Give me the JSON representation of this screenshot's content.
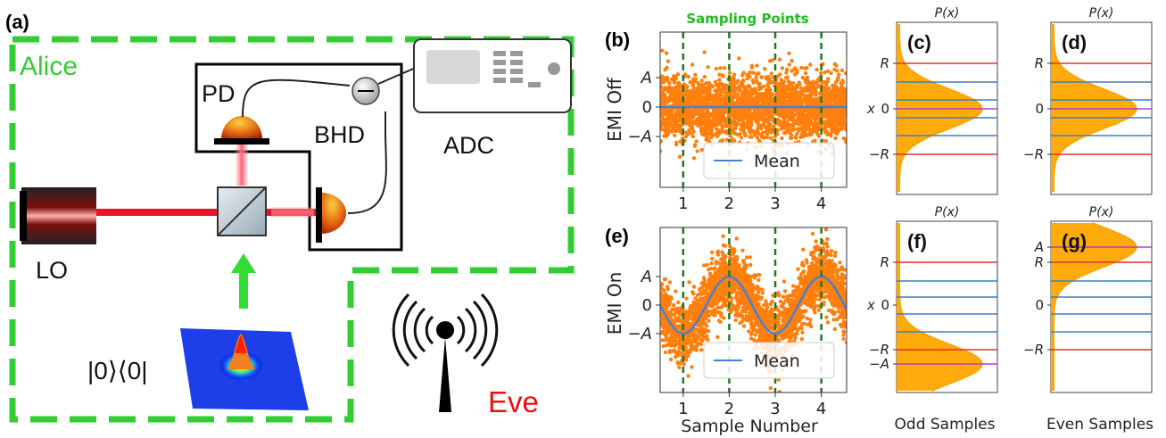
{
  "panel_labels": {
    "a": "(a)",
    "b": "(b)",
    "c": "(c)",
    "d": "(d)",
    "e": "(e)",
    "f": "(f)",
    "g": "(g)"
  },
  "setup": {
    "alice": "Alice",
    "pd": "PD",
    "bhd": "BHD",
    "adc": "ADC",
    "lo": "LO",
    "vacuum_state": "|0⟩⟨0|",
    "eve": "Eve"
  },
  "colors": {
    "alice_border": "#33cc33",
    "laser": "#e8152a",
    "samples": "#ff7f0e",
    "mean": "#4a7fd0",
    "sampling_line": "#1e7a1e",
    "density": "#ffa500",
    "line_red": "#e03030",
    "line_blue": "#3f7fbf",
    "line_magenta": "#b040c0"
  },
  "time_series": {
    "sampling_title": "Sampling Points",
    "b_ylabel": "EMI Off",
    "e_ylabel": "EMI On",
    "xlabel": "Sample Number",
    "legend_label": "Mean",
    "yticks": [
      "A",
      "0",
      "−A"
    ],
    "xticks": [
      "1",
      "2",
      "3",
      "4"
    ]
  },
  "distributions": {
    "p_label": "P(x)",
    "x_label": "x",
    "tick_R": "R",
    "tick_0": "0",
    "tick_negR": "−R",
    "tick_A": "A",
    "tick_negA": "−A",
    "odd_label": "Odd Samples",
    "even_label": "Even Samples"
  },
  "chart_data": [
    {
      "type": "scatter",
      "panel": "b",
      "ylabel": "EMI Off",
      "x_ticks": [
        1,
        2,
        3,
        4
      ],
      "sampling_points": [
        1,
        2,
        3,
        4
      ],
      "mean": "constant 0",
      "legend": "Mean"
    },
    {
      "type": "scatter",
      "panel": "e",
      "ylabel": "EMI On",
      "xlabel": "Sample Number",
      "x_ticks": [
        1,
        2,
        3,
        4
      ],
      "sampling_points": [
        1,
        2,
        3,
        4
      ],
      "mean": "sinusoid, minima at 1 and 3 (−A), maxima at 2 and 4 (A)",
      "legend": "Mean"
    },
    {
      "type": "area",
      "panel": "c",
      "distribution": "gaussian centered at 0",
      "levels": [
        "R",
        "0",
        "−R"
      ]
    },
    {
      "type": "area",
      "panel": "d",
      "distribution": "gaussian centered at 0",
      "levels": [
        "R",
        "0",
        "−R"
      ]
    },
    {
      "type": "area",
      "panel": "f",
      "distribution": "gaussian centered at −A",
      "levels": [
        "R",
        "0",
        "−R",
        "−A"
      ]
    },
    {
      "type": "area",
      "panel": "g",
      "distribution": "gaussian centered at A",
      "levels": [
        "A",
        "R",
        "0",
        "−R"
      ]
    }
  ]
}
